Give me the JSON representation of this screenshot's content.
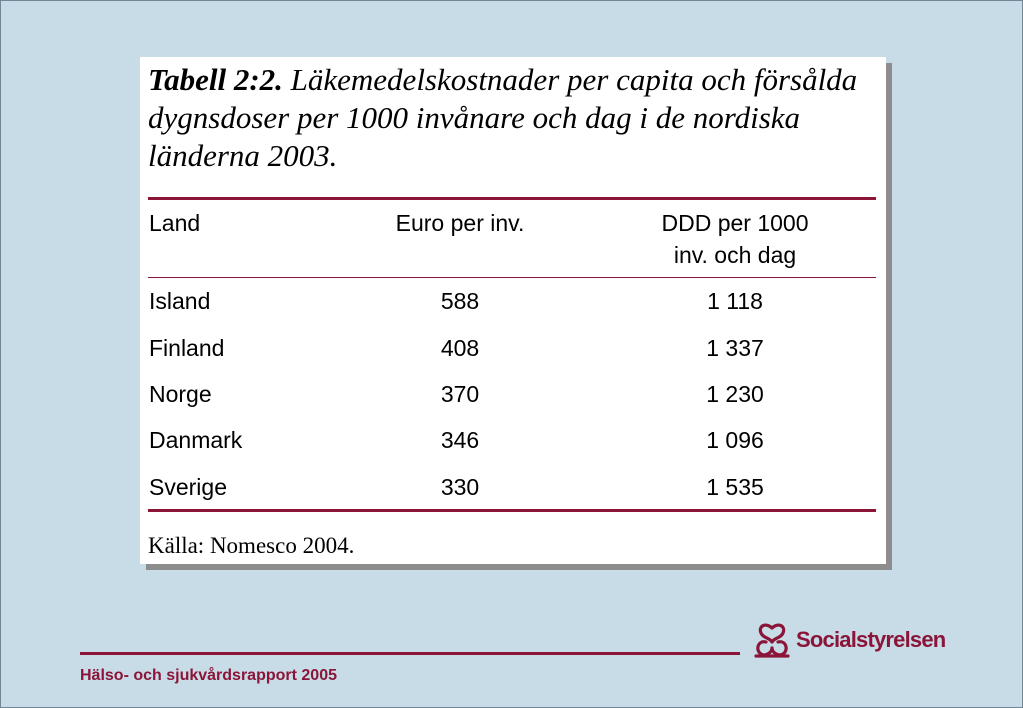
{
  "caption": {
    "label": "Tabell 2:2.",
    "text": "Läkemedelskostnader per capita och försålda dygnsdoser per 1000 invånare och dag i de nordiska länderna 2003."
  },
  "table": {
    "headers": {
      "land": "Land",
      "euro": "Euro per inv.",
      "ddd_line1": "DDD per 1000",
      "ddd_line2": "inv. och dag"
    },
    "rows": [
      {
        "land": "Island",
        "euro": "588",
        "ddd": "1 118"
      },
      {
        "land": "Finland",
        "euro": "408",
        "ddd": "1 337"
      },
      {
        "land": "Norge",
        "euro": "370",
        "ddd": "1 230"
      },
      {
        "land": "Danmark",
        "euro": "346",
        "ddd": "1 096"
      },
      {
        "land": "Sverige",
        "euro": "330",
        "ddd": "1 535"
      }
    ]
  },
  "source": "Källa: Nomesco 2004.",
  "footer": {
    "report_title": "Hälso- och sjukvårdsrapport 2005"
  },
  "logo": {
    "name": "Socialstyrelsen",
    "icon": "socialstyrelsen-emblem-icon"
  },
  "colors": {
    "background": "#c8dce8",
    "accent": "#8a1538"
  }
}
